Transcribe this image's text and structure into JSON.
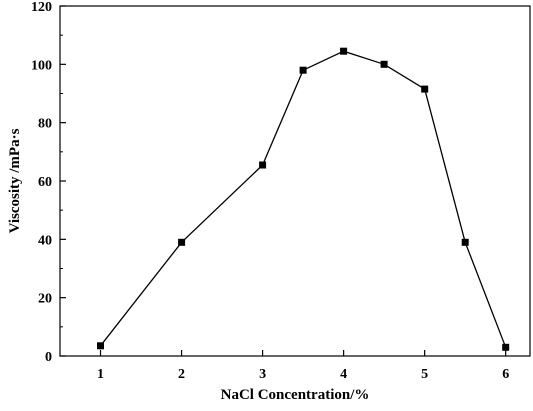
{
  "chart_data": {
    "type": "line",
    "title": "",
    "xlabel": "NaCl Concentration/%",
    "ylabel": "Viscosity /mPa·s",
    "xlim": [
      0.5,
      6.3
    ],
    "ylim": [
      0,
      120
    ],
    "xticks": [
      1,
      2,
      3,
      4,
      5,
      6
    ],
    "yticks": [
      0,
      20,
      40,
      60,
      80,
      100,
      120
    ],
    "grid": false,
    "legend": "none",
    "marker": "square",
    "series": [
      {
        "x": [
          1,
          2,
          3,
          3.5,
          4,
          4.5,
          5,
          5.5,
          6
        ],
        "y": [
          3.5,
          39,
          65.5,
          98,
          104.5,
          100,
          91.5,
          39,
          3
        ],
        "color": "#000000"
      }
    ]
  }
}
